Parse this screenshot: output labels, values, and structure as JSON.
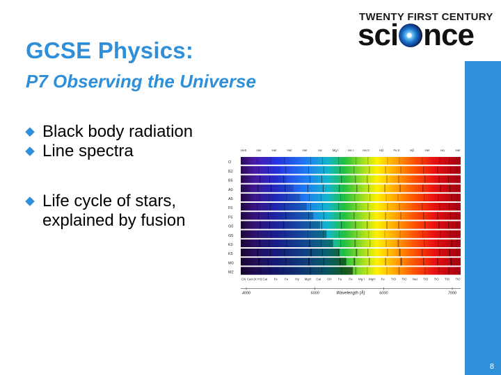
{
  "slide": {
    "title": "GCSE Physics:",
    "subtitle": "P7 Observing the Universe",
    "page_number": "8"
  },
  "logo": {
    "top_text": "TWENTY FIRST CENTURY",
    "word_left": "sci",
    "word_right": "nce",
    "icon": "galaxy-icon"
  },
  "bullets": [
    "Black body radiation",
    "Line spectra",
    "Life cycle of stars, explained by fusion"
  ],
  "colors": {
    "accent": "#2f8fd8",
    "text": "#000000"
  },
  "spectrum": {
    "classes": [
      "O",
      "B2",
      "B5",
      "A0",
      "A5",
      "F0",
      "F5",
      "G0",
      "G5",
      "K0",
      "K5",
      "M0",
      "M2"
    ],
    "top_lines": [
      "HeII",
      "HeI",
      "HeI",
      "HeI",
      "HeI",
      "Hε",
      "Mg I",
      "He I",
      "He II",
      "Hβ",
      "Fe II",
      "Hβ",
      "HeI",
      "Hα",
      "HeI"
    ],
    "bottom_lines": [
      "CN",
      "CaII (K+H)",
      "CaI",
      "Fe",
      "Fe",
      "Hγ",
      "MgH",
      "CaI",
      "CH",
      "Fe",
      "Fe",
      "Mg I",
      "MgH",
      "Fe",
      "TiO",
      "TiO",
      "NaI",
      "TiO",
      "TiO",
      "TiO",
      "TiO"
    ],
    "axis_ticks": [
      "4000",
      "5000",
      "6000",
      "7000"
    ],
    "axis_label": "Wavelength (Å)"
  }
}
